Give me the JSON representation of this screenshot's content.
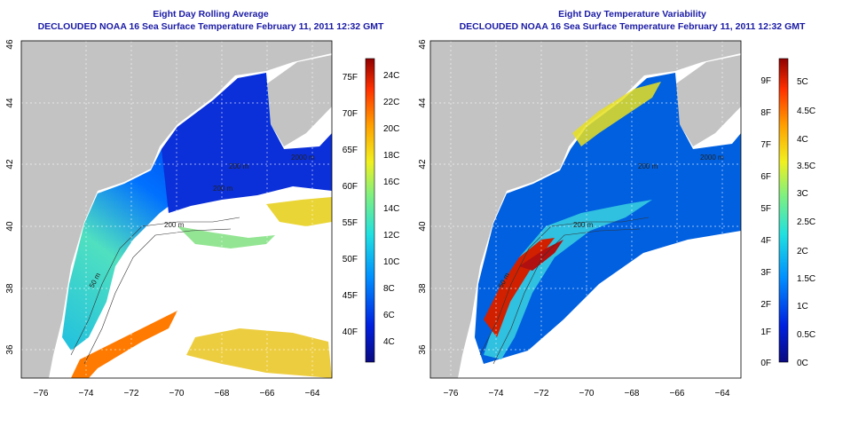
{
  "panels": [
    {
      "title": "Eight Day Rolling Average",
      "subtitle": "DECLOUDED NOAA 16 Sea Surface Temperature February 11, 2011 12:32 GMT",
      "x_ticks": [
        "−76",
        "−74",
        "−72",
        "−70",
        "−68",
        "−66",
        "−64"
      ],
      "y_ticks": [
        "36",
        "38",
        "40",
        "42",
        "44",
        "46"
      ],
      "colorbar_f": [
        "75F",
        "70F",
        "65F",
        "60F",
        "55F",
        "50F",
        "45F",
        "40F"
      ],
      "colorbar_c": [
        "24C",
        "22C",
        "20C",
        "18C",
        "16C",
        "14C",
        "12C",
        "10C",
        "8C",
        "6C",
        "4C"
      ],
      "contour_labels": [
        "200 m",
        "200 m",
        "200 m",
        "50 m",
        "2000 m"
      ]
    },
    {
      "title": "Eight Day Temperature Variability",
      "subtitle": "DECLOUDED NOAA 16 Sea Surface Temperature February 11, 2011 12:32 GMT",
      "x_ticks": [
        "−76",
        "−74",
        "−72",
        "−70",
        "−68",
        "−66",
        "−64"
      ],
      "y_ticks": [
        "36",
        "38",
        "40",
        "42",
        "44",
        "46"
      ],
      "colorbar_f": [
        "9F",
        "8F",
        "7F",
        "6F",
        "5F",
        "4F",
        "3F",
        "2F",
        "1F",
        "0F"
      ],
      "colorbar_c": [
        "5C",
        "4.5C",
        "4C",
        "3.5C",
        "3C",
        "2.5C",
        "2C",
        "1.5C",
        "1C",
        "0.5C",
        "0C"
      ],
      "contour_labels": [
        "200 m",
        "200 m",
        "50 m",
        "2000 m"
      ]
    }
  ],
  "colors": {
    "title": "#1a1aa6",
    "land": "#c3c3c3",
    "ocean_cold": "#0b2fd8",
    "ocean_deep": "#0a1a9a"
  }
}
